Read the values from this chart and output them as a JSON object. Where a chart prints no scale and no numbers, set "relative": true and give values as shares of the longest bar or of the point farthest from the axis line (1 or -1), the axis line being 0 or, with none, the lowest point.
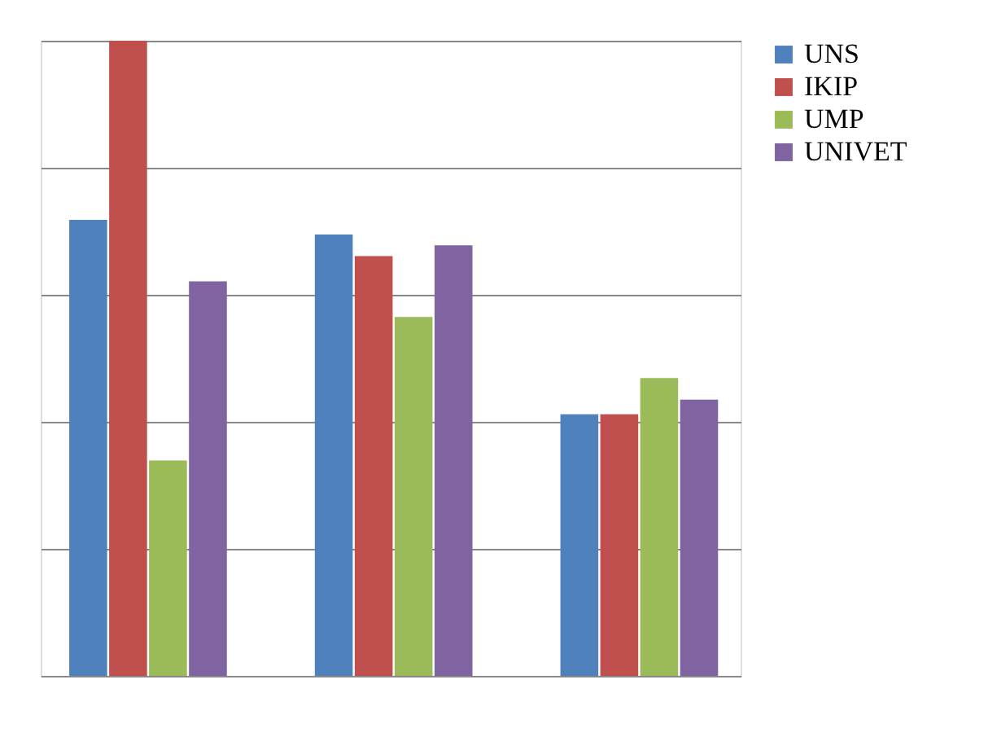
{
  "chart_data": {
    "type": "bar",
    "relative": true,
    "categories": [
      null,
      null,
      null
    ],
    "series": [
      {
        "name": "UNS",
        "color": "#4f81bd",
        "values": [
          0.718,
          0.695,
          0.412
        ]
      },
      {
        "name": "IKIP",
        "color": "#c0504d",
        "values": [
          1,
          0.661,
          0.412
        ]
      },
      {
        "name": "UMP",
        "color": "#9bbb59",
        "values": [
          0.339,
          0.565,
          0.469
        ]
      },
      {
        "name": "UNIVET",
        "color": "#8064a2",
        "values": [
          0.621,
          0.678,
          0.435
        ]
      }
    ],
    "grid": "y",
    "legend": "right"
  }
}
